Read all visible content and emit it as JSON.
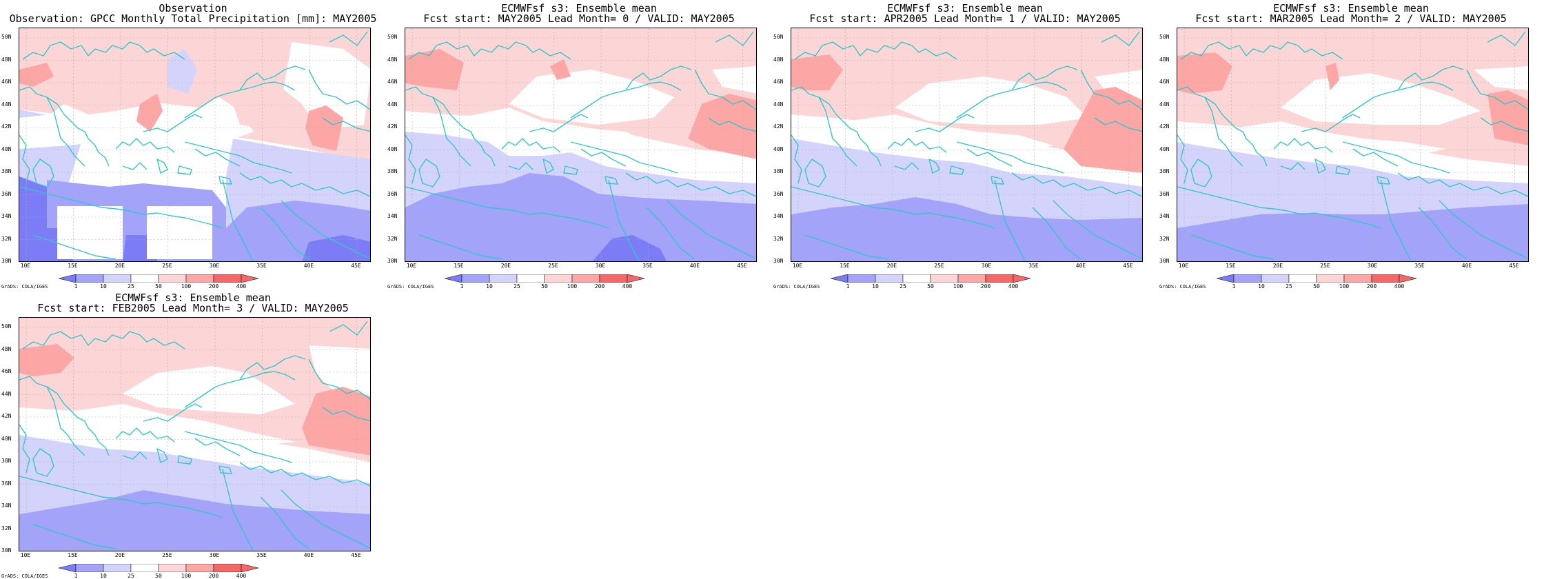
{
  "colors": {
    "blue_dark": "#7c7cf6",
    "blue_mid": "#a3a3fa",
    "blue_light": "#d3d3fc",
    "white": "#ffffff",
    "red_light": "#fcd6d6",
    "red_mid": "#fca6a6",
    "red_dark": "#f56868",
    "coast": "#30c8c8",
    "grid": "#b0b0b0"
  },
  "axes": {
    "lat_labels": [
      "50N",
      "48N",
      "46N",
      "44N",
      "42N",
      "40N",
      "38N",
      "36N",
      "34N",
      "32N",
      "30N"
    ],
    "lon_labels": [
      "10E",
      "15E",
      "20E",
      "25E",
      "30E",
      "35E",
      "40E",
      "45E"
    ]
  },
  "colorbar": {
    "labels": [
      "1",
      "10",
      "25",
      "50",
      "100",
      "200",
      "400"
    ]
  },
  "footer": "GrADS: COLA/IGES",
  "panels": [
    {
      "title_line1": "Observation",
      "title_line2": "Observation: GPCC Monthly Total Precipitation [mm]: MAY2005"
    },
    {
      "title_line1": "ECMWFsf s3: Ensemble mean",
      "title_line2": "Fcst start: MAY2005  Lead Month= 0 / VALID: MAY2005"
    },
    {
      "title_line1": "ECMWFsf s3: Ensemble mean",
      "title_line2": "Fcst start: APR2005  Lead Month= 1 / VALID: MAY2005"
    },
    {
      "title_line1": "ECMWFsf s3: Ensemble mean",
      "title_line2": "Fcst start: MAR2005  Lead Month= 2 / VALID: MAY2005"
    },
    {
      "title_line1": "ECMWFsf s3: Ensemble mean",
      "title_line2": "Fcst start: FEB2005  Lead Month= 3 / VALID: MAY2005"
    }
  ]
}
